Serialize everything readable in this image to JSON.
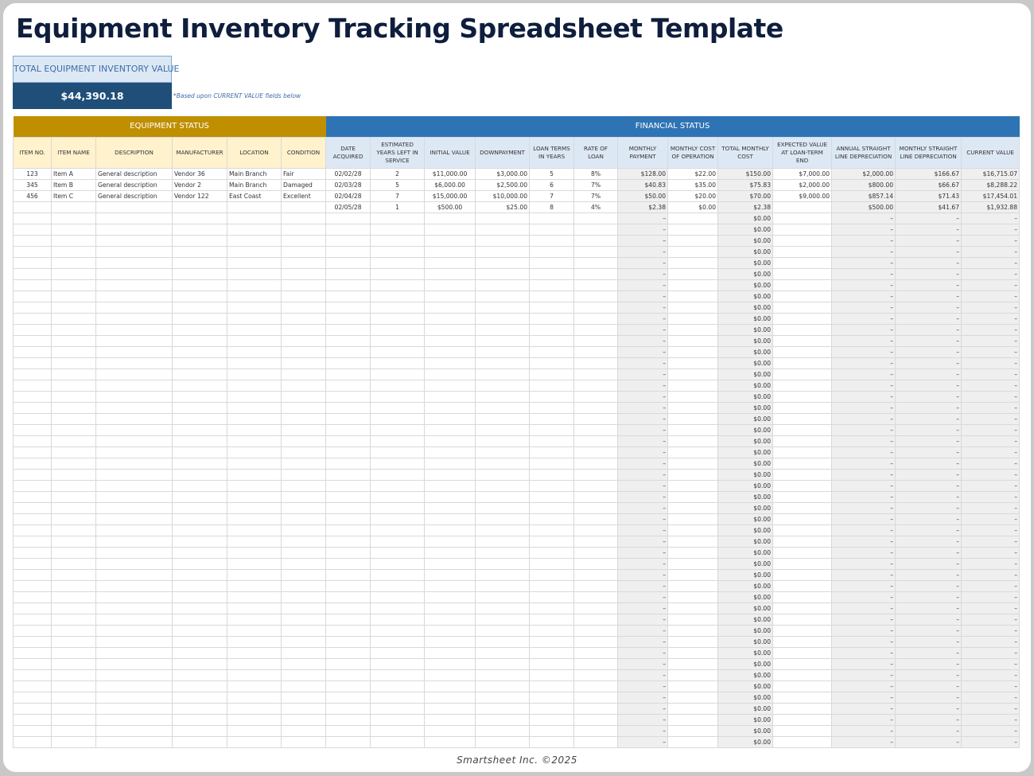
{
  "title": "Equipment Inventory Tracking Spreadsheet Template",
  "summary": {
    "label": "TOTAL EQUIPMENT INVENTORY VALUE",
    "value": "$44,390.18",
    "note": "*Based upon CURRENT VALUE fields below"
  },
  "groups": {
    "equipment": "EQUIPMENT STATUS",
    "financial": "FINANCIAL STATUS"
  },
  "columns": [
    "ITEM NO.",
    "ITEM NAME",
    "DESCRIPTION",
    "MANUFACTURER",
    "LOCATION",
    "CONDITION",
    "DATE ACQUIRED",
    "ESTIMATED YEARS LEFT IN SERVICE",
    "INITIAL VALUE",
    "DOWNPAYMENT",
    "LOAN TERMS IN YEARS",
    "RATE OF LOAN",
    "MONTHLY PAYMENT",
    "MONTHLY COST OF OPERATION",
    "TOTAL MONTHLY COST",
    "EXPECTED VALUE AT LOAN-TERM END",
    "ANNUAL STRAIGHT LINE DEPRECIATION",
    "MONTHLY STRAIGHT LINE DEPRECIATION",
    "CURRENT VALUE"
  ],
  "rows": [
    [
      "123",
      "Item A",
      "General description",
      "Vendor 36",
      "Main Branch",
      "Fair",
      "02/02/28",
      "2",
      "$11,000.00",
      "$3,000.00",
      "5",
      "8%",
      "$128.00",
      "$22.00",
      "$150.00",
      "$7,000.00",
      "$2,000.00",
      "$166.67",
      "$16,715.07"
    ],
    [
      "345",
      "Item B",
      "General description",
      "Vendor 2",
      "Main Branch",
      "Damaged",
      "02/03/28",
      "5",
      "$6,000.00",
      "$2,500.00",
      "6",
      "7%",
      "$40.83",
      "$35.00",
      "$75.83",
      "$2,000.00",
      "$800.00",
      "$66.67",
      "$8,288.22"
    ],
    [
      "456",
      "Item C",
      "General description",
      "Vendor 122",
      "East Coast",
      "Excellent",
      "02/04/28",
      "7",
      "$15,000.00",
      "$10,000.00",
      "7",
      "7%",
      "$50.00",
      "$20.00",
      "$70.00",
      "$9,000.00",
      "$857.14",
      "$71.43",
      "$17,454.01"
    ],
    [
      "",
      "",
      "",
      "",
      "",
      "",
      "02/05/28",
      "1",
      "$500.00",
      "$25.00",
      "8",
      "4%",
      "$2.38",
      "$0.00",
      "$2.38",
      "",
      "$500.00",
      "$41.67",
      "$1,932.88"
    ]
  ],
  "empty_row_count": 48,
  "empty_row_template": [
    "",
    "",
    "",
    "",
    "",
    "",
    "",
    "",
    "",
    "",
    "",
    "",
    "–",
    "",
    "$0.00",
    "",
    "–",
    "–",
    "–"
  ],
  "footer": "Smartsheet Inc. ©2025"
}
